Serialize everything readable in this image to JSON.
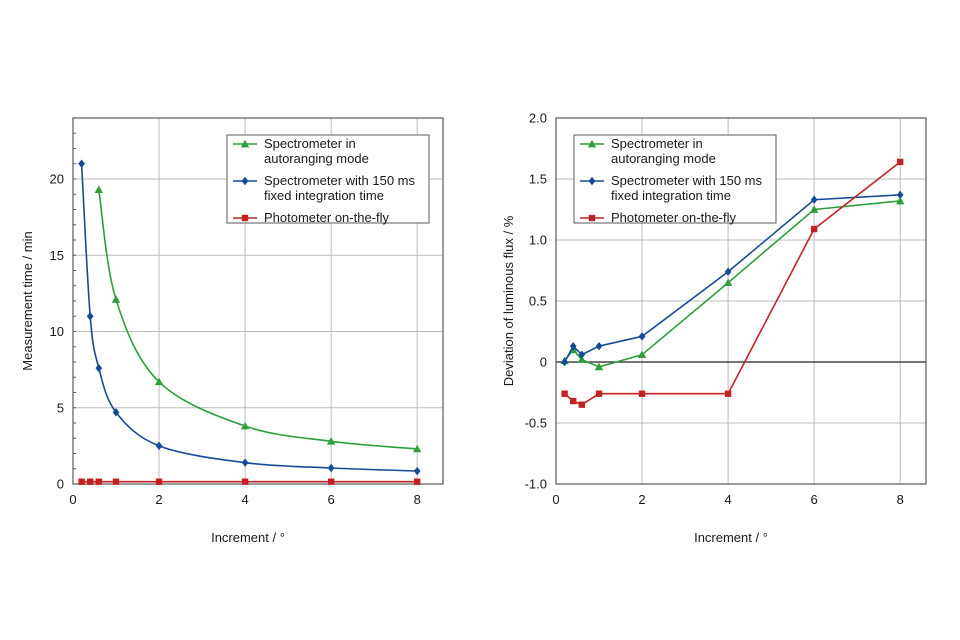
{
  "colors": {
    "green": "#2e9e3c",
    "blue": "#174a94",
    "red": "#c42222",
    "grid": "#bdbdbd",
    "frame": "#5a5a5a",
    "zero_line": "#222222"
  },
  "legend": {
    "position": "top-right",
    "entries": [
      {
        "lines": [
          "Spectrometer in",
          "autoranging mode"
        ],
        "marker": "triangle",
        "color_key": "green"
      },
      {
        "lines": [
          "Spectrometer with 150 ms",
          "fixed integration time"
        ],
        "marker": "diamond",
        "color_key": "blue"
      },
      {
        "lines": [
          "Photometer on-the-fly"
        ],
        "marker": "square",
        "color_key": "red"
      }
    ]
  },
  "chart_data": [
    {
      "type": "line",
      "xlabel": "Increment / °",
      "ylabel": "Measurement time / min",
      "xlim": [
        0,
        8.6
      ],
      "ylim": [
        0,
        24
      ],
      "xticks": [
        0,
        2,
        4,
        6,
        8
      ],
      "yticks": [
        0,
        5,
        10,
        15,
        20
      ],
      "xtick_labels": [
        "0",
        "2",
        "4",
        "6",
        "8"
      ],
      "ytick_labels": [
        "0",
        "5",
        "10",
        "15",
        "20"
      ],
      "minor_yticks_step": 1,
      "grid": true,
      "smooth": true,
      "series": [
        {
          "name": "Spectrometer in autoranging mode",
          "marker": "triangle",
          "color_key": "green",
          "x": [
            0.6,
            1,
            2,
            4,
            6,
            8
          ],
          "y": [
            19.3,
            12.1,
            6.7,
            3.8,
            2.8,
            2.3
          ]
        },
        {
          "name": "Spectrometer with 150 ms fixed integration time",
          "marker": "diamond",
          "color_key": "blue",
          "x": [
            0.2,
            0.4,
            0.6,
            1,
            2,
            4,
            6,
            8
          ],
          "y": [
            21.0,
            11.0,
            7.6,
            4.7,
            2.5,
            1.4,
            1.05,
            0.85
          ]
        },
        {
          "name": "Photometer on-the-fly",
          "marker": "square",
          "color_key": "red",
          "x": [
            0.2,
            0.4,
            0.6,
            1,
            2,
            4,
            6,
            8
          ],
          "y": [
            0.15,
            0.15,
            0.15,
            0.15,
            0.15,
            0.15,
            0.15,
            0.15
          ]
        }
      ]
    },
    {
      "type": "line",
      "xlabel": "Increment / °",
      "ylabel": "Deviation of luminous flux / %",
      "xlim": [
        0,
        8.6
      ],
      "ylim": [
        -1.0,
        2.0
      ],
      "xticks": [
        0,
        2,
        4,
        6,
        8
      ],
      "yticks": [
        -1.0,
        -0.5,
        0,
        0.5,
        1.0,
        1.5,
        2.0
      ],
      "xtick_labels": [
        "0",
        "2",
        "4",
        "6",
        "8"
      ],
      "ytick_labels": [
        "-1.0",
        "-0.5",
        "0",
        "0.5",
        "1.0",
        "1.5",
        "2.0"
      ],
      "grid": true,
      "zero_line": true,
      "smooth": false,
      "series": [
        {
          "name": "Spectrometer in autoranging mode",
          "marker": "triangle",
          "color_key": "green",
          "x": [
            0.2,
            0.4,
            0.6,
            1,
            2,
            4,
            6,
            8
          ],
          "y": [
            0.01,
            0.1,
            0.02,
            -0.04,
            0.06,
            0.65,
            1.25,
            1.32
          ]
        },
        {
          "name": "Spectrometer with 150 ms fixed integration time",
          "marker": "diamond",
          "color_key": "blue",
          "x": [
            0.2,
            0.4,
            0.6,
            1,
            2,
            4,
            6,
            8
          ],
          "y": [
            0.0,
            0.13,
            0.06,
            0.13,
            0.21,
            0.74,
            1.33,
            1.37
          ]
        },
        {
          "name": "Photometer on-the-fly",
          "marker": "square",
          "color_key": "red",
          "x": [
            0.2,
            0.4,
            0.6,
            1,
            2,
            4,
            6,
            8
          ],
          "y": [
            -0.26,
            -0.32,
            -0.35,
            -0.26,
            -0.26,
            -0.26,
            1.09,
            1.64
          ]
        }
      ]
    }
  ]
}
